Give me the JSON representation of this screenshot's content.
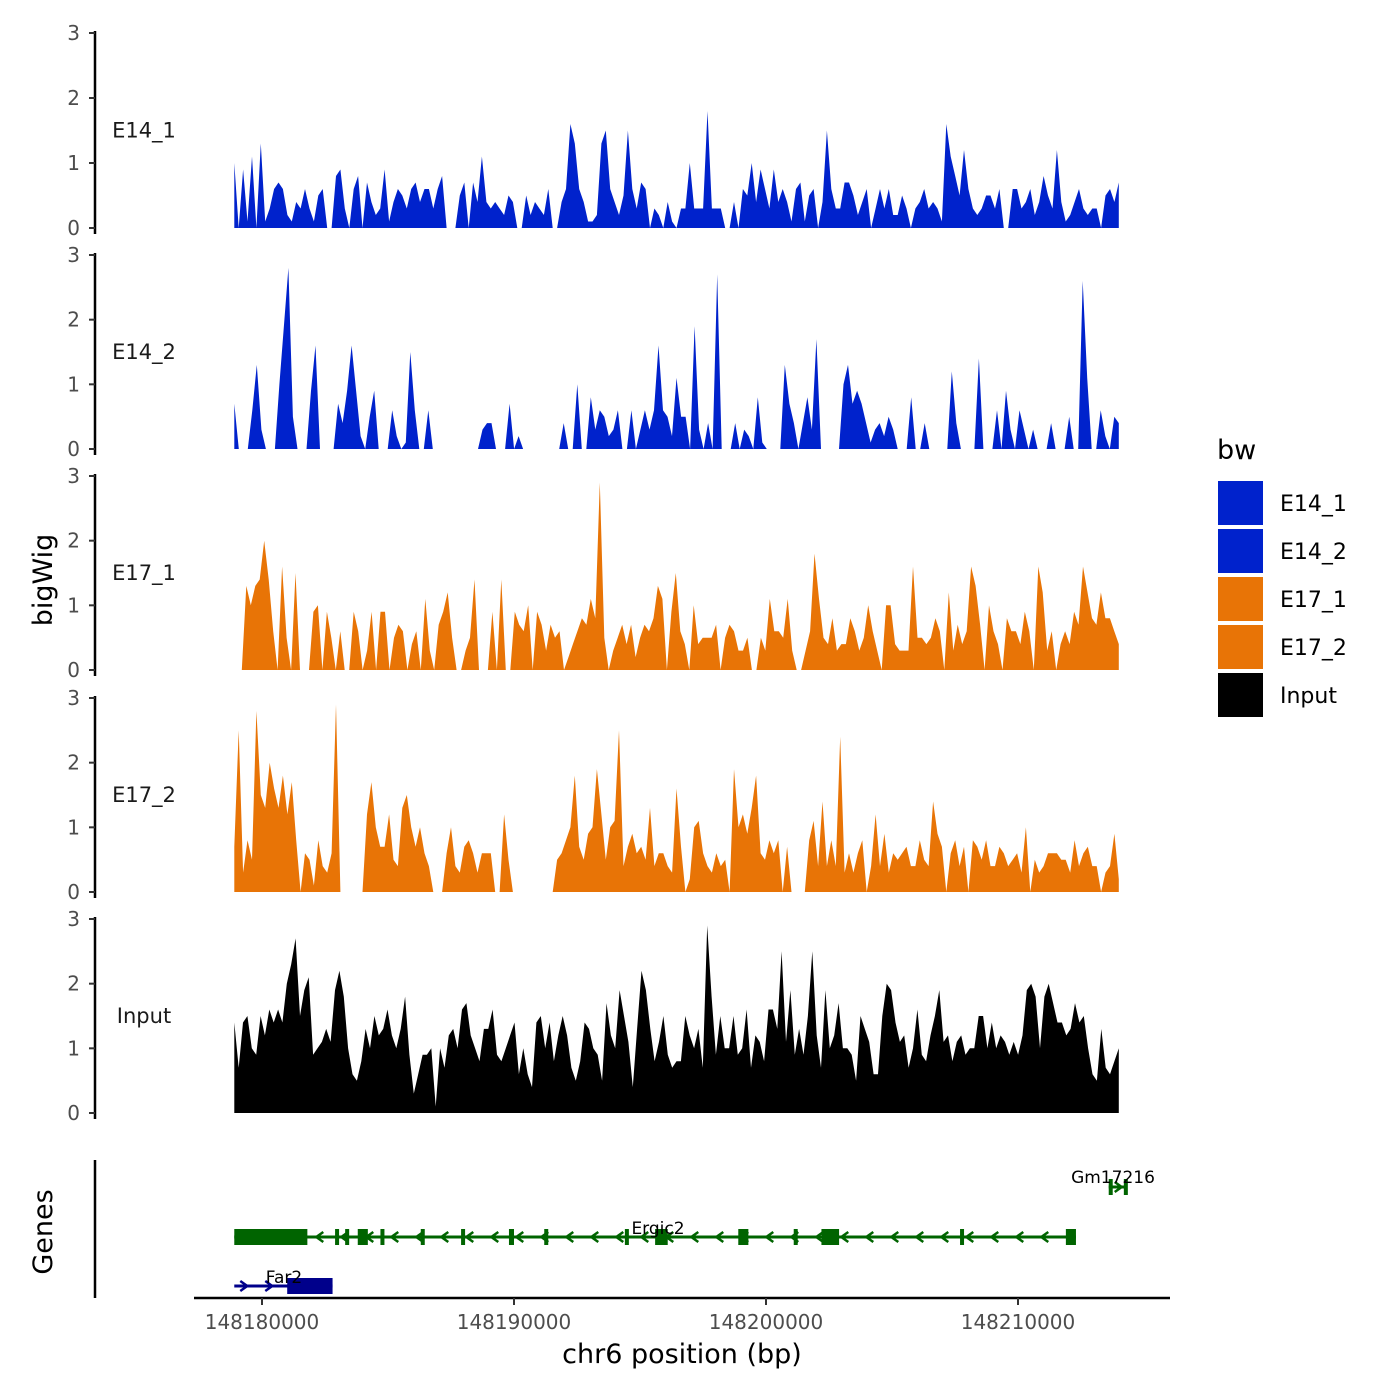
{
  "chart_data": {
    "type": "area",
    "chromosome": "chr6",
    "xlabel": "chr6 position (bp)",
    "ylabel": "bigWig",
    "gene_panel_label": "Genes",
    "x_range": [
      148179000,
      148214500
    ],
    "x_ticks": [
      148180000,
      148190000,
      148200000,
      148210000
    ],
    "x_tick_labels": [
      "148180000",
      "148190000",
      "148200000",
      "148210000"
    ],
    "y_ticks": [
      0,
      1,
      2,
      3
    ],
    "y_range": [
      0,
      3
    ],
    "legend": {
      "title": "bw",
      "entries": [
        {
          "label": "E14_1",
          "color": "#0022CC"
        },
        {
          "label": "E14_2",
          "color": "#0022CC"
        },
        {
          "label": "E17_1",
          "color": "#E87406"
        },
        {
          "label": "E17_2",
          "color": "#E87406"
        },
        {
          "label": "Input",
          "color": "#000000"
        }
      ]
    },
    "series": [
      {
        "name": "E14_1",
        "color": "#0022CC",
        "x_start": 148178900,
        "x_end": 148214000,
        "values": [
          1.0,
          0.0,
          0.9,
          0.1,
          1.1,
          0.0,
          1.3,
          0.1,
          0.3,
          0.6,
          0.7,
          0.6,
          0.2,
          0.1,
          0.4,
          0.3,
          0.6,
          0.3,
          0.1,
          0.5,
          0.6,
          0.0,
          0.0,
          0.8,
          0.9,
          0.3,
          0.0,
          0.6,
          0.8,
          0.0,
          0.7,
          0.4,
          0.2,
          0.3,
          0.9,
          0.1,
          0.4,
          0.6,
          0.5,
          0.3,
          0.6,
          0.7,
          0.4,
          0.6,
          0.6,
          0.3,
          0.6,
          0.8,
          0.0,
          0.0,
          0.0,
          0.5,
          0.7,
          0.0,
          0.7,
          0.4,
          1.1,
          0.4,
          0.3,
          0.4,
          0.3,
          0.2,
          0.5,
          0.4,
          0.0,
          0.0,
          0.5,
          0.2,
          0.4,
          0.3,
          0.2,
          0.6,
          0.0,
          0.0,
          0.4,
          0.6,
          1.6,
          1.3,
          0.6,
          0.4,
          0.1,
          0.1,
          0.2,
          1.3,
          1.5,
          0.6,
          0.4,
          0.2,
          0.5,
          1.5,
          0.6,
          0.3,
          0.7,
          0.6,
          0.0,
          0.3,
          0.2,
          0.0,
          0.4,
          0.1,
          0.0,
          0.3,
          0.3,
          1.0,
          0.3,
          0.3,
          0.3,
          1.8,
          0.3,
          0.3,
          0.3,
          0.0,
          0.0,
          0.4,
          0.0,
          0.6,
          0.5,
          1.0,
          0.4,
          0.9,
          0.6,
          0.3,
          0.9,
          0.4,
          0.6,
          0.4,
          0.1,
          0.6,
          0.7,
          0.1,
          0.5,
          0.6,
          0.0,
          0.4,
          1.5,
          0.6,
          0.3,
          0.3,
          0.7,
          0.7,
          0.5,
          0.2,
          0.4,
          0.6,
          0.0,
          0.3,
          0.6,
          0.3,
          0.6,
          0.2,
          0.2,
          0.5,
          0.3,
          0.0,
          0.3,
          0.4,
          0.6,
          0.3,
          0.4,
          0.3,
          0.1,
          1.6,
          1.1,
          0.8,
          0.5,
          1.2,
          0.6,
          0.3,
          0.2,
          0.3,
          0.5,
          0.5,
          0.3,
          0.6,
          0.0,
          0.0,
          0.6,
          0.6,
          0.3,
          0.4,
          0.6,
          0.2,
          0.4,
          0.8,
          0.5,
          0.3,
          1.2,
          0.4,
          0.1,
          0.2,
          0.4,
          0.6,
          0.3,
          0.2,
          0.3,
          0.3,
          0.0,
          0.5,
          0.6,
          0.4,
          0.7
        ]
      },
      {
        "name": "E14_2",
        "color": "#0022CC",
        "x_start": 148178900,
        "x_end": 148214000,
        "values": [
          0.7,
          0.0,
          0.0,
          0.0,
          0.6,
          1.3,
          0.3,
          0.0,
          0.0,
          0.0,
          1.0,
          1.9,
          2.8,
          0.5,
          0.0,
          0.0,
          0.0,
          0.9,
          1.6,
          0.0,
          0.0,
          0.0,
          0.0,
          0.7,
          0.4,
          0.9,
          1.6,
          0.9,
          0.2,
          0.0,
          0.5,
          0.9,
          0.0,
          0.0,
          0.0,
          0.6,
          0.2,
          0.0,
          0.1,
          1.5,
          0.6,
          0.0,
          0.0,
          0.6,
          0.0,
          0.0,
          0.0,
          0.0,
          0.0,
          0.0,
          0.0,
          0.0,
          0.0,
          0.0,
          0.0,
          0.3,
          0.4,
          0.4,
          0.0,
          0.0,
          0.0,
          0.7,
          0.0,
          0.2,
          0.0,
          0.0,
          0.0,
          0.0,
          0.0,
          0.0,
          0.0,
          0.0,
          0.0,
          0.4,
          0.0,
          0.0,
          1.0,
          0.0,
          0.0,
          0.8,
          0.3,
          0.6,
          0.5,
          0.2,
          0.3,
          0.6,
          0.0,
          0.0,
          0.6,
          0.0,
          0.3,
          0.6,
          0.3,
          0.6,
          1.6,
          0.6,
          0.5,
          0.2,
          1.1,
          0.5,
          0.5,
          0.0,
          1.9,
          0.3,
          0.0,
          0.4,
          0.0,
          2.7,
          0.0,
          0.0,
          0.0,
          0.4,
          0.0,
          0.3,
          0.2,
          0.0,
          0.8,
          0.1,
          0.0,
          0.0,
          0.0,
          0.0,
          1.3,
          0.7,
          0.4,
          0.0,
          0.4,
          0.8,
          0.3,
          1.7,
          0.0,
          0.0,
          0.0,
          0.0,
          0.0,
          1.0,
          1.3,
          0.7,
          0.9,
          0.7,
          0.4,
          0.1,
          0.3,
          0.4,
          0.2,
          0.5,
          0.3,
          0.0,
          0.0,
          0.0,
          0.8,
          0.0,
          0.0,
          0.4,
          0.0,
          0.0,
          0.0,
          0.0,
          0.0,
          1.2,
          0.4,
          0.0,
          0.0,
          0.0,
          0.0,
          1.4,
          0.0,
          0.0,
          0.0,
          0.6,
          0.0,
          0.9,
          0.3,
          0.0,
          0.6,
          0.3,
          0.0,
          0.3,
          0.0,
          0.0,
          0.0,
          0.4,
          0.0,
          0.0,
          0.0,
          0.5,
          0.0,
          0.0,
          2.6,
          1.1,
          0.0,
          0.0,
          0.6,
          0.2,
          0.0,
          0.5,
          0.4
        ]
      },
      {
        "name": "E17_1",
        "color": "#E87406",
        "x_start": 148179200,
        "x_end": 148214000,
        "values": [
          0.0,
          1.3,
          1.0,
          1.3,
          1.4,
          2.0,
          1.4,
          0.6,
          0.0,
          1.6,
          0.5,
          0.0,
          1.5,
          0.0,
          0.0,
          0.0,
          0.9,
          1.0,
          0.0,
          0.9,
          0.5,
          0.0,
          0.6,
          0.0,
          0.0,
          0.9,
          0.6,
          0.0,
          0.3,
          0.9,
          0.0,
          0.9,
          0.9,
          0.0,
          0.5,
          0.7,
          0.6,
          0.0,
          0.4,
          0.6,
          0.0,
          1.1,
          0.3,
          0.0,
          0.7,
          0.9,
          1.2,
          0.5,
          0.0,
          0.0,
          0.3,
          0.5,
          1.4,
          0.0,
          0.0,
          0.0,
          0.9,
          0.0,
          1.4,
          0.0,
          0.0,
          0.9,
          0.7,
          0.6,
          1.0,
          0.0,
          0.9,
          0.7,
          0.3,
          0.7,
          0.5,
          0.6,
          0.0,
          0.2,
          0.4,
          0.6,
          0.8,
          0.7,
          1.1,
          0.8,
          2.9,
          0.5,
          0.0,
          0.3,
          0.5,
          0.7,
          0.4,
          0.7,
          0.2,
          0.5,
          0.7,
          0.6,
          0.8,
          1.3,
          1.1,
          0.0,
          0.9,
          1.5,
          0.6,
          0.4,
          0.0,
          1.0,
          0.4,
          0.5,
          0.5,
          0.5,
          0.7,
          0.0,
          0.5,
          0.7,
          0.6,
          0.3,
          0.3,
          0.5,
          0.0,
          0.0,
          0.5,
          0.3,
          1.1,
          0.6,
          0.6,
          0.5,
          1.1,
          0.3,
          0.0,
          0.0,
          0.3,
          0.6,
          1.8,
          1.1,
          0.5,
          0.4,
          0.8,
          0.3,
          0.4,
          0.4,
          0.8,
          0.6,
          0.3,
          0.5,
          1.0,
          0.6,
          0.3,
          0.0,
          1.0,
          1.0,
          0.4,
          0.3,
          0.3,
          0.3,
          1.6,
          0.5,
          0.5,
          0.4,
          0.5,
          0.8,
          0.6,
          0.0,
          1.2,
          0.3,
          0.7,
          0.4,
          0.6,
          1.6,
          1.3,
          0.7,
          0.0,
          1.0,
          0.6,
          0.4,
          0.0,
          0.8,
          0.6,
          0.6,
          0.4,
          0.9,
          0.6,
          0.0,
          1.6,
          1.2,
          0.3,
          0.6,
          0.0,
          0.4,
          0.6,
          0.4,
          0.9,
          0.7,
          1.6,
          1.2,
          0.8,
          0.7,
          1.2,
          0.8,
          0.8,
          0.6,
          0.4
        ]
      },
      {
        "name": "E17_2",
        "color": "#E87406",
        "x_start": 148178900,
        "x_end": 148214000,
        "values": [
          0.7,
          2.5,
          0.3,
          0.8,
          0.5,
          2.8,
          1.5,
          1.3,
          2.0,
          1.6,
          1.3,
          1.8,
          1.2,
          1.7,
          0.8,
          0.0,
          0.6,
          0.5,
          0.1,
          0.8,
          0.4,
          0.3,
          0.6,
          2.9,
          0.0,
          0.0,
          0.0,
          0.0,
          0.0,
          0.0,
          1.2,
          1.7,
          1.0,
          0.7,
          0.7,
          1.2,
          0.5,
          0.4,
          1.3,
          1.5,
          1.0,
          0.7,
          1.0,
          0.6,
          0.4,
          0.0,
          0.0,
          0.0,
          0.6,
          1.0,
          0.4,
          0.3,
          0.7,
          0.8,
          0.6,
          0.3,
          0.6,
          0.6,
          0.6,
          0.0,
          0.0,
          1.2,
          0.5,
          0.0,
          0.0,
          0.0,
          0.0,
          0.0,
          0.0,
          0.0,
          0.0,
          0.0,
          0.0,
          0.5,
          0.6,
          0.8,
          1.0,
          1.8,
          0.7,
          0.5,
          0.9,
          1.0,
          1.9,
          1.2,
          0.5,
          1.0,
          1.1,
          2.5,
          0.4,
          0.7,
          0.9,
          0.6,
          0.7,
          0.5,
          1.3,
          0.4,
          0.6,
          0.6,
          0.4,
          0.3,
          1.6,
          0.7,
          0.0,
          0.2,
          1.0,
          1.1,
          0.6,
          0.4,
          0.3,
          0.6,
          0.4,
          0.5,
          0.0,
          1.9,
          1.0,
          1.2,
          0.9,
          1.3,
          1.8,
          0.6,
          0.5,
          0.8,
          0.6,
          0.8,
          0.0,
          0.7,
          0.0,
          0.0,
          0.0,
          0.0,
          0.8,
          1.1,
          0.4,
          1.4,
          0.4,
          0.8,
          0.4,
          2.4,
          0.3,
          0.6,
          0.3,
          0.6,
          0.8,
          0.0,
          0.4,
          1.2,
          0.4,
          0.9,
          0.3,
          0.6,
          0.5,
          0.6,
          0.7,
          0.4,
          0.4,
          0.8,
          0.5,
          0.4,
          1.4,
          0.9,
          0.7,
          0.0,
          0.6,
          0.8,
          0.4,
          0.7,
          0.0,
          0.8,
          0.7,
          0.5,
          0.8,
          0.4,
          0.4,
          0.7,
          0.6,
          0.4,
          0.5,
          0.6,
          0.3,
          1.0,
          0.0,
          0.5,
          0.3,
          0.4,
          0.6,
          0.6,
          0.6,
          0.5,
          0.5,
          0.3,
          0.8,
          0.4,
          0.6,
          0.7,
          0.4,
          0.4,
          0.0,
          0.3,
          0.4,
          0.9,
          0.2
        ]
      },
      {
        "name": "Input",
        "color": "#000000",
        "x_start": 148178900,
        "x_end": 148214000,
        "values": [
          1.4,
          0.7,
          1.4,
          1.5,
          1.0,
          0.9,
          1.5,
          1.2,
          1.6,
          1.4,
          1.6,
          1.4,
          2.0,
          2.3,
          2.7,
          1.5,
          1.9,
          2.1,
          0.9,
          1.0,
          1.1,
          1.3,
          1.1,
          1.9,
          2.2,
          1.8,
          1.0,
          0.6,
          0.5,
          0.8,
          1.3,
          1.0,
          1.5,
          1.2,
          1.3,
          1.6,
          1.2,
          1.0,
          1.3,
          1.8,
          0.9,
          0.3,
          0.6,
          0.9,
          0.9,
          1.0,
          0.1,
          1.0,
          0.7,
          1.2,
          1.3,
          1.0,
          1.6,
          1.7,
          1.2,
          1.0,
          0.8,
          1.3,
          1.3,
          1.6,
          0.9,
          0.8,
          1.0,
          1.2,
          1.4,
          0.6,
          1.0,
          0.6,
          0.4,
          1.4,
          1.5,
          1.0,
          1.4,
          0.8,
          1.2,
          1.5,
          1.2,
          0.7,
          0.5,
          0.8,
          1.4,
          1.3,
          1.0,
          0.9,
          0.5,
          1.7,
          1.2,
          1.0,
          1.9,
          1.5,
          1.1,
          0.4,
          1.3,
          2.2,
          1.9,
          1.3,
          0.8,
          1.1,
          1.5,
          0.9,
          0.7,
          0.8,
          0.8,
          1.5,
          1.2,
          1.0,
          1.3,
          0.7,
          2.9,
          1.8,
          0.9,
          1.5,
          1.0,
          1.0,
          1.5,
          0.9,
          1.0,
          1.6,
          0.7,
          1.2,
          1.1,
          0.8,
          1.6,
          1.6,
          1.3,
          2.5,
          1.1,
          1.9,
          0.9,
          1.3,
          0.9,
          1.5,
          2.5,
          1.2,
          0.7,
          1.9,
          1.0,
          1.2,
          1.7,
          1.0,
          1.0,
          0.9,
          0.5,
          1.5,
          1.3,
          1.1,
          0.6,
          0.6,
          1.5,
          2.0,
          1.9,
          1.4,
          1.1,
          1.2,
          0.7,
          1.0,
          1.6,
          0.9,
          0.8,
          1.2,
          1.5,
          1.9,
          1.1,
          1.2,
          0.8,
          1.1,
          1.2,
          0.9,
          1.0,
          1.0,
          1.5,
          1.5,
          1.0,
          1.4,
          1.0,
          1.2,
          1.1,
          0.9,
          1.1,
          0.9,
          1.2,
          1.9,
          2.0,
          1.8,
          1.0,
          1.8,
          2.0,
          1.7,
          1.4,
          1.4,
          1.2,
          1.3,
          1.7,
          1.4,
          1.5,
          1.0,
          0.6,
          0.5,
          1.3,
          0.7,
          0.6,
          0.8,
          1.0
        ]
      }
    ],
    "genes": [
      {
        "name": "Gm17216",
        "strand": "+",
        "color": "#006400",
        "start": 148213600,
        "end": 148214300,
        "exons": [
          [
            148213600,
            148213700
          ],
          [
            148214200,
            148214300
          ]
        ],
        "row": 0
      },
      {
        "name": "Ergic2",
        "strand": "-",
        "color": "#006400",
        "start": 148178900,
        "end": 148212300,
        "exons": [
          [
            148178900,
            148181800
          ],
          [
            148182900,
            148183000
          ],
          [
            148183300,
            148183400
          ],
          [
            148183800,
            148184200
          ],
          [
            148184700,
            148184800
          ],
          [
            148186300,
            148186400
          ],
          [
            148187900,
            148188000
          ],
          [
            148189800,
            148190000
          ],
          [
            148191200,
            148191300
          ],
          [
            148194400,
            148194500
          ],
          [
            148195600,
            148196100
          ],
          [
            148198900,
            148199300
          ],
          [
            148201100,
            148201200
          ],
          [
            148202200,
            148202900
          ],
          [
            148207700,
            148207800
          ],
          [
            148211900,
            148212300
          ]
        ],
        "row": 1
      },
      {
        "name": "Far2",
        "strand": "+",
        "color": "#00008B",
        "start": 148178900,
        "end": 148182800,
        "exons": [
          [
            148181000,
            148182800
          ]
        ],
        "row": 2
      }
    ]
  }
}
